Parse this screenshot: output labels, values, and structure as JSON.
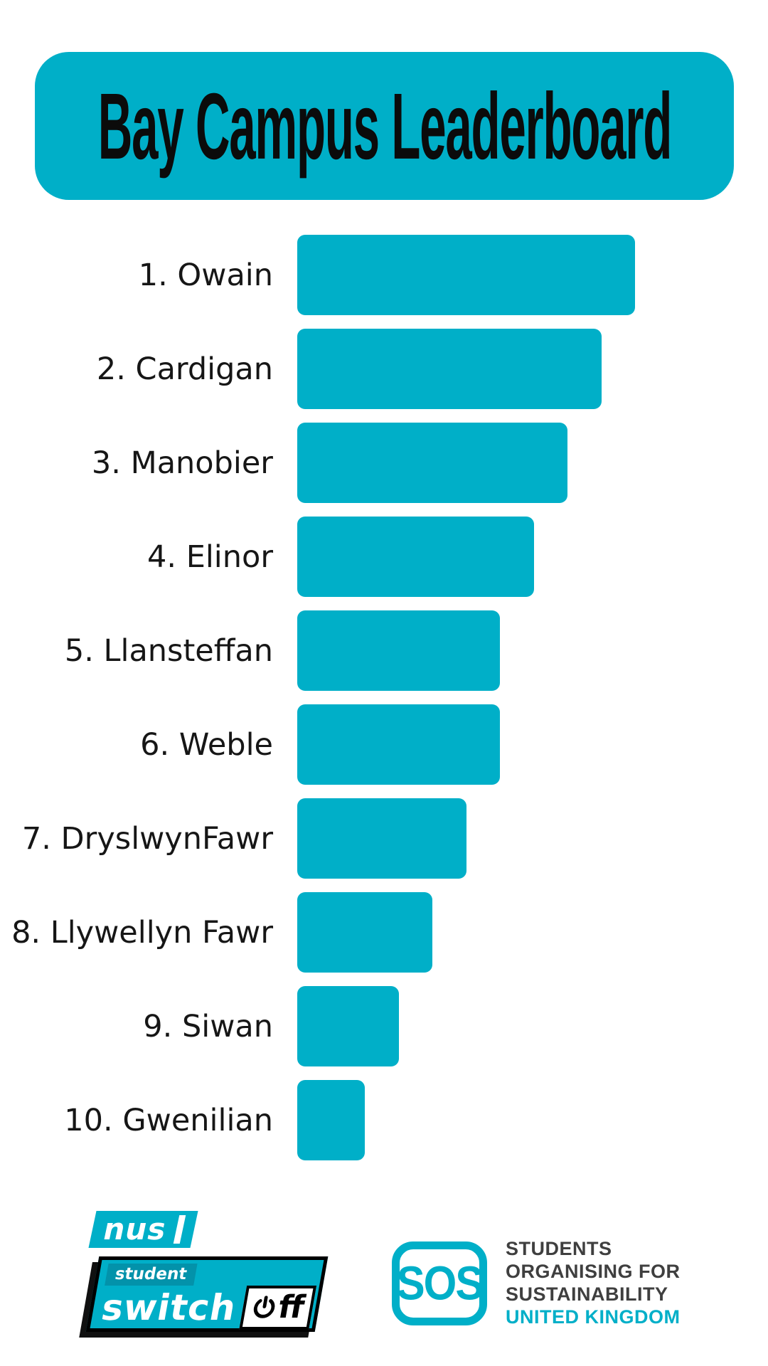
{
  "page": {
    "background": "#ffffff",
    "accent": "#00AFC8"
  },
  "header": {
    "title": "Bay Campus Leaderboard",
    "bg": "#00AFC8",
    "text_color": "#0b0b0b"
  },
  "chart_data": {
    "type": "bar",
    "orientation": "horizontal",
    "title": "Bay Campus Leaderboard",
    "categories": [
      "1. Owain",
      "2. Cardigan",
      "3. Manobier",
      "4. Elinor",
      "5. Llansteffan",
      "6. Weble",
      "7. DryslwynFawr",
      "8. Llywellyn Fawr",
      "9. Siwan",
      "10. Gwenilian"
    ],
    "values": [
      100,
      90,
      80,
      70,
      60,
      60,
      50,
      40,
      30,
      20
    ],
    "note": "no numeric axis shown in image; values estimated as percent of longest bar",
    "bar_color": "#00AFC8",
    "xlim": [
      0,
      100
    ],
    "grid": false,
    "legend": false
  },
  "footer": {
    "nus": {
      "name": "nus",
      "student": "student",
      "switch": "switch",
      "off_suffix": "ff",
      "power_icon": "power-icon"
    },
    "sos": {
      "acronym": "SOS",
      "lines": [
        "STUDENTS",
        "ORGANISING FOR",
        "SUSTAINABILITY"
      ],
      "country": "UNITED KINGDOM"
    }
  }
}
